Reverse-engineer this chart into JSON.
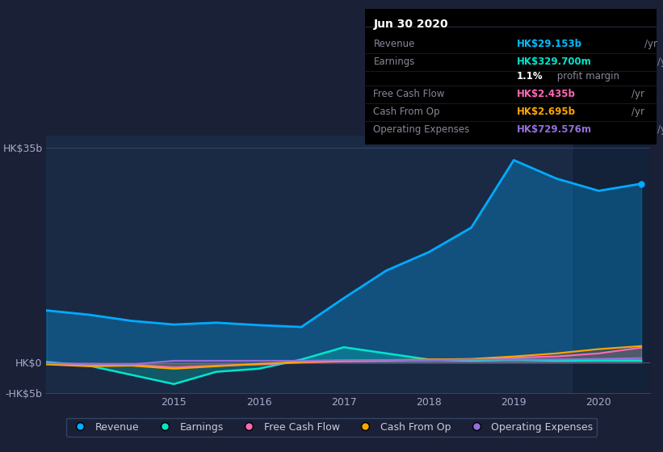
{
  "background_color": "#1a2035",
  "plot_bg_color": "#1a2a45",
  "grid_color": "#2a3a55",
  "title_box": {
    "date": "Jun 30 2020",
    "rows": [
      {
        "label": "Revenue",
        "value": "HK$29.153b",
        "unit": "/yr",
        "value_color": "#00bfff"
      },
      {
        "label": "Earnings",
        "value": "HK$329.700m",
        "unit": "/yr",
        "value_color": "#00e5cc"
      },
      {
        "label": "",
        "value": "1.1%",
        "unit": " profit margin",
        "value_color": "#ffffff"
      },
      {
        "label": "Free Cash Flow",
        "value": "HK$2.435b",
        "unit": "/yr",
        "value_color": "#ff69b4"
      },
      {
        "label": "Cash From Op",
        "value": "HK$2.695b",
        "unit": "/yr",
        "value_color": "#ffa500"
      },
      {
        "label": "Operating Expenses",
        "value": "HK$729.576m",
        "unit": "/yr",
        "value_color": "#9370db"
      }
    ]
  },
  "x_years": [
    2013.5,
    2014.0,
    2014.5,
    2015.0,
    2015.5,
    2016.0,
    2016.5,
    2017.0,
    2017.5,
    2018.0,
    2018.5,
    2019.0,
    2019.5,
    2020.0,
    2020.5
  ],
  "revenue": [
    8.5,
    7.8,
    6.8,
    6.2,
    6.5,
    6.1,
    5.8,
    10.5,
    15.0,
    18.0,
    22.0,
    33.0,
    30.0,
    28.0,
    29.153
  ],
  "earnings": [
    0.1,
    -0.5,
    -2.0,
    -3.5,
    -1.5,
    -1.0,
    0.5,
    2.5,
    1.5,
    0.5,
    0.3,
    0.5,
    0.3,
    0.35,
    0.33
  ],
  "free_cash_flow": [
    -0.2,
    -0.5,
    -0.3,
    -0.8,
    -0.5,
    -0.3,
    0.0,
    0.2,
    0.3,
    0.5,
    0.5,
    0.8,
    1.0,
    1.5,
    2.435
  ],
  "cash_from_op": [
    -0.3,
    -0.6,
    -0.5,
    -1.0,
    -0.6,
    -0.2,
    0.1,
    0.3,
    0.4,
    0.5,
    0.6,
    1.0,
    1.5,
    2.2,
    2.695
  ],
  "operating_expenses": [
    -0.1,
    -0.2,
    -0.3,
    0.3,
    0.3,
    0.3,
    0.3,
    0.4,
    0.4,
    0.4,
    0.5,
    0.5,
    0.5,
    0.6,
    0.73
  ],
  "revenue_color": "#00aaff",
  "earnings_color": "#00e5cc",
  "free_cash_flow_color": "#ff69b4",
  "cash_from_op_color": "#ffa500",
  "operating_expenses_color": "#9370db",
  "ylim": [
    -5,
    37
  ],
  "yticks": [
    -5,
    0,
    35
  ],
  "ytick_labels": [
    "-HK$5b",
    "HK$0",
    "HK$35b"
  ],
  "xticks": [
    2015,
    2016,
    2017,
    2018,
    2019,
    2020
  ],
  "legend_labels": [
    "Revenue",
    "Earnings",
    "Free Cash Flow",
    "Cash From Op",
    "Operating Expenses"
  ],
  "legend_colors": [
    "#00aaff",
    "#00e5cc",
    "#ff69b4",
    "#ffa500",
    "#9370db"
  ]
}
